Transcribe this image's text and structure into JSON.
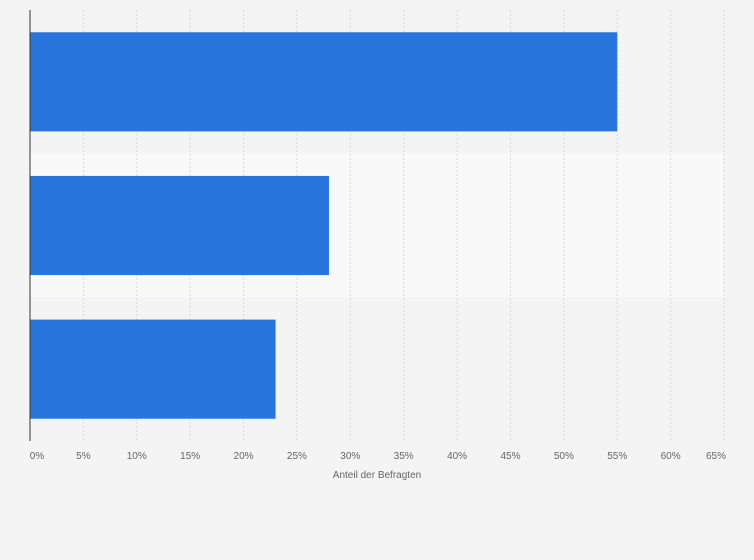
{
  "chart_data": {
    "type": "bar",
    "orientation": "horizontal",
    "categories": [
      "",
      "",
      ""
    ],
    "values": [
      55,
      28,
      23
    ],
    "xlabel": "Anteil der Befragten",
    "ylabel": "",
    "xlim": [
      0,
      65
    ],
    "ticks": [
      0,
      5,
      10,
      15,
      20,
      25,
      30,
      35,
      40,
      45,
      50,
      55,
      60,
      65
    ],
    "tick_labels": [
      "0%",
      "5%",
      "10%",
      "15%",
      "20%",
      "25%",
      "30%",
      "35%",
      "40%",
      "45%",
      "50%",
      "55%",
      "60%",
      "65%"
    ],
    "grid": true,
    "legend": "none",
    "colors": {
      "bar": "#2876dd",
      "band_light": "#f9f9f9",
      "band_dark": "#f4f4f4",
      "grid": "#d9d9d9",
      "axis": "#333333"
    }
  }
}
